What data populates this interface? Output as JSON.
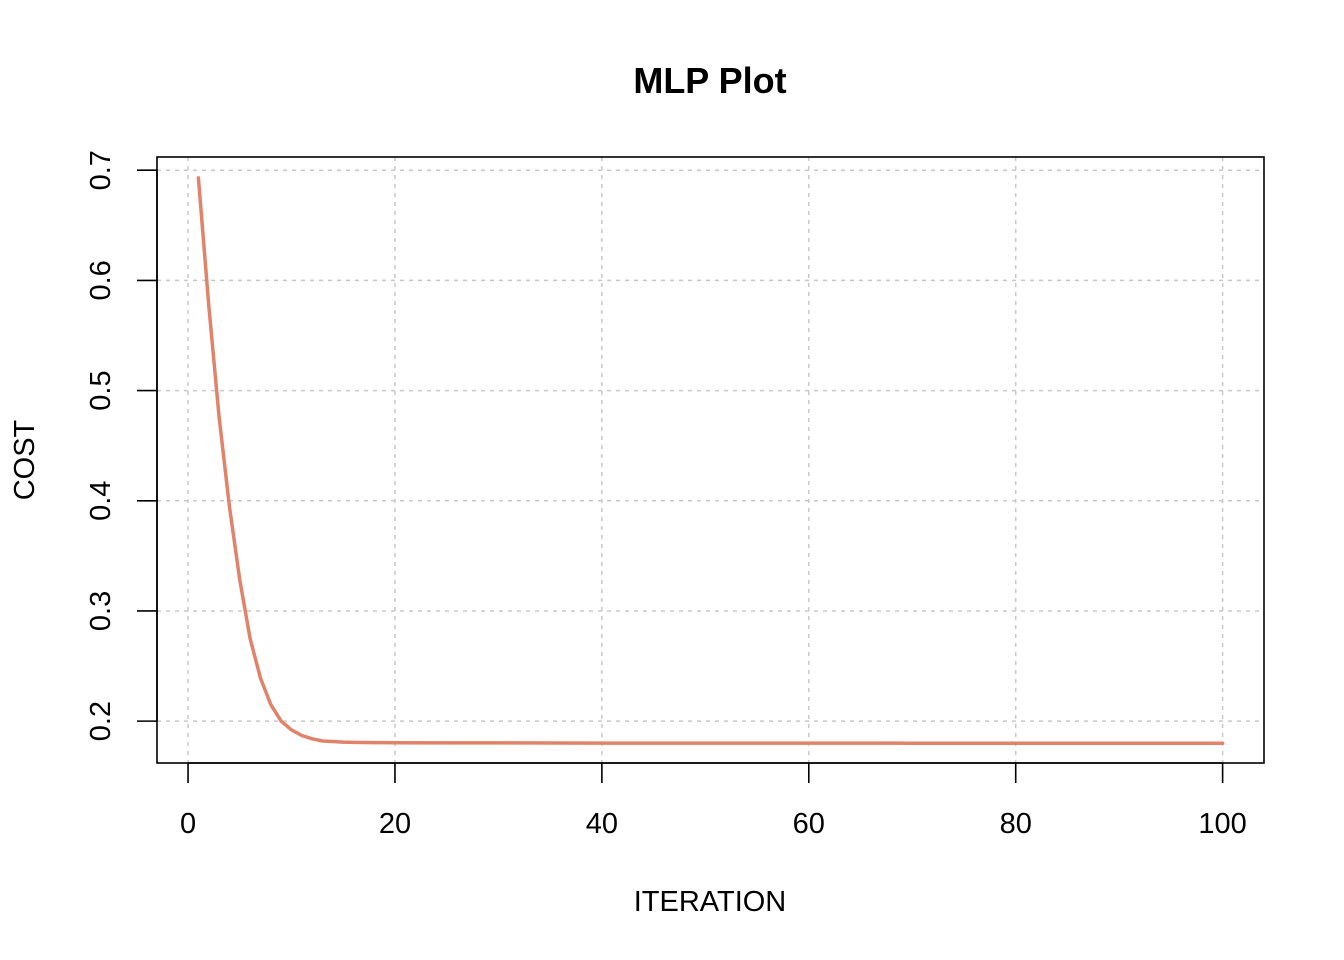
{
  "chart_data": {
    "type": "line",
    "title": "MLP Plot",
    "xlabel": "ITERATION",
    "ylabel": "COST",
    "xlim": [
      -3,
      104
    ],
    "ylim": [
      0.162,
      0.712
    ],
    "x_ticks": [
      0,
      20,
      40,
      60,
      80,
      100
    ],
    "y_ticks": [
      0.2,
      0.3,
      0.4,
      0.5,
      0.6,
      0.7
    ],
    "x_tick_labels": [
      "0",
      "20",
      "40",
      "60",
      "80",
      "100"
    ],
    "y_tick_labels": [
      "0.2",
      "0.3",
      "0.4",
      "0.5",
      "0.6",
      "0.7"
    ],
    "grid": true,
    "colors": {
      "line": "#E0836A",
      "grid": "#c8c8c8",
      "axis": "#000000"
    },
    "series": [
      {
        "x": [
          1,
          2,
          3,
          4,
          5,
          6,
          7,
          8,
          9,
          10,
          11,
          12,
          13,
          14,
          15,
          16,
          18,
          20,
          25,
          30,
          40,
          50,
          60,
          70,
          80,
          90,
          100
        ],
        "y": [
          0.693,
          0.578,
          0.476,
          0.395,
          0.328,
          0.275,
          0.239,
          0.215,
          0.2,
          0.192,
          0.187,
          0.184,
          0.182,
          0.1815,
          0.181,
          0.1807,
          0.1805,
          0.1803,
          0.1802,
          0.1802,
          0.1801,
          0.1801,
          0.1801,
          0.18,
          0.18,
          0.18,
          0.18
        ]
      }
    ]
  }
}
